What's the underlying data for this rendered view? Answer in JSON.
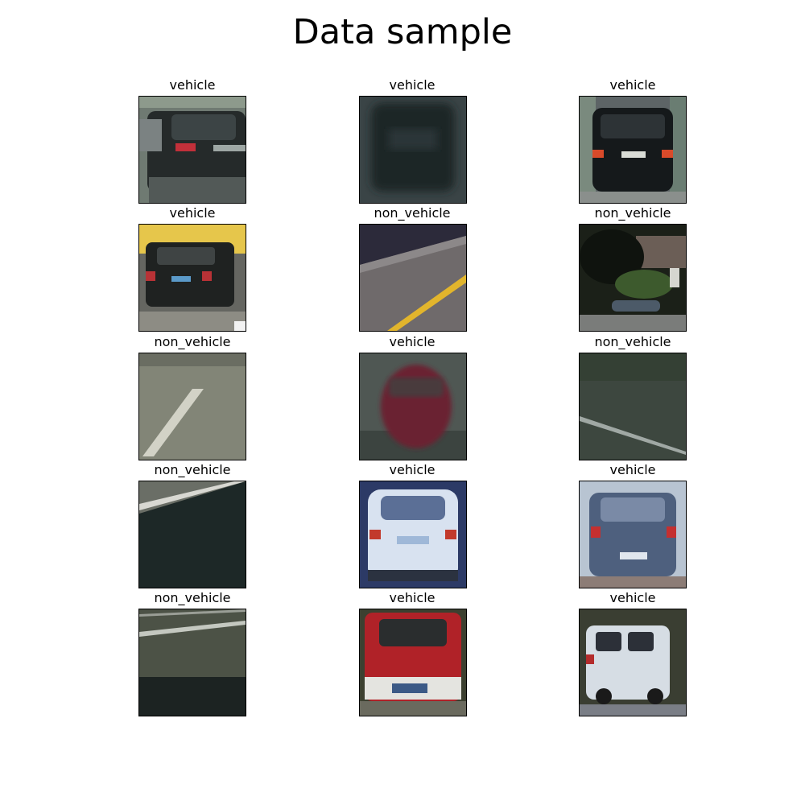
{
  "figure": {
    "title": "Data sample"
  },
  "samples": [
    {
      "label": "vehicle"
    },
    {
      "label": "vehicle"
    },
    {
      "label": "vehicle"
    },
    {
      "label": "vehicle"
    },
    {
      "label": "non_vehicle"
    },
    {
      "label": "non_vehicle"
    },
    {
      "label": "non_vehicle"
    },
    {
      "label": "vehicle"
    },
    {
      "label": "non_vehicle"
    },
    {
      "label": "non_vehicle"
    },
    {
      "label": "vehicle"
    },
    {
      "label": "vehicle"
    },
    {
      "label": "non_vehicle"
    },
    {
      "label": "vehicle"
    },
    {
      "label": "vehicle"
    }
  ]
}
